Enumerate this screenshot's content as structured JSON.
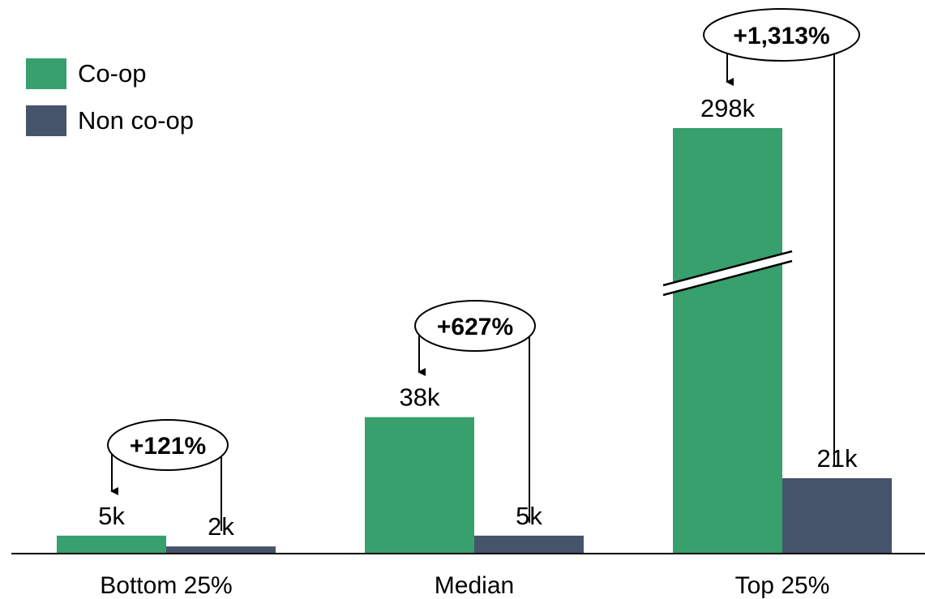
{
  "chart_data": {
    "type": "bar",
    "categories": [
      "Bottom 25%",
      "Median",
      "Top 25%"
    ],
    "series": [
      {
        "name": "Co-op",
        "values": [
          5,
          38,
          298
        ],
        "labels": [
          "5k",
          "38k",
          "298k"
        ],
        "color": "#37a06d"
      },
      {
        "name": "Non co-op",
        "values": [
          2,
          5,
          21
        ],
        "labels": [
          "2k",
          "5k",
          "21k"
        ],
        "color": "#45546b"
      }
    ],
    "annotations": [
      "+121%",
      "+627%",
      "+1,313%"
    ],
    "axis_break": {
      "category": "Top 25%",
      "series": "Co-op"
    },
    "grid": false,
    "legend_position": "top-left"
  }
}
